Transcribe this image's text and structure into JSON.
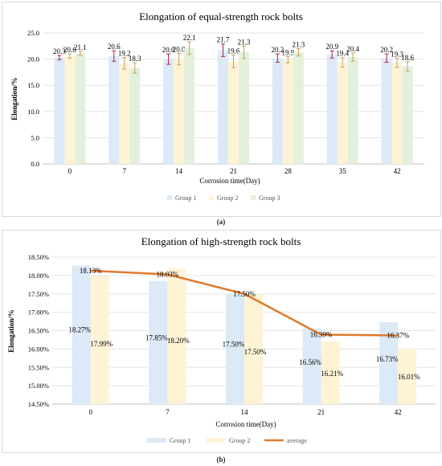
{
  "captions": {
    "a": "(a)",
    "b": "(b)"
  },
  "chart_data": [
    {
      "type": "bar",
      "title": "Elongation of equal-strength rock bolts",
      "xlabel": "Corrosion time(Day)",
      "ylabel": "Elongation/%",
      "categories": [
        "0",
        "7",
        "14",
        "21",
        "28",
        "35",
        "42"
      ],
      "ylim": [
        0,
        25
      ],
      "yticks": [
        "0.0",
        "5.0",
        "10.0",
        "15.0",
        "20.0",
        "25.0"
      ],
      "grid": true,
      "legend_position": "bottom",
      "series": [
        {
          "name": "Group 1",
          "color": "#dce9f7",
          "values": [
            20.3,
            20.6,
            20.0,
            21.7,
            20.2,
            20.9,
            20.2
          ],
          "labels": [
            "20.3",
            "20.6",
            "20.0",
            "21.7",
            "20.2",
            "20.9",
            "20.2"
          ],
          "errors": [
            0.4,
            1.0,
            1.0,
            1.2,
            0.8,
            0.7,
            0.8
          ]
        },
        {
          "name": "Group 2",
          "color": "#fff3d6",
          "values": [
            20.6,
            19.2,
            20.0,
            19.6,
            19.9,
            19.4,
            19.3
          ],
          "labels": [
            "20.6",
            "19.2",
            "20.0",
            "19.6",
            "19.9",
            "19.4",
            "19.3"
          ],
          "errors": [
            0.4,
            1.1,
            1.1,
            1.2,
            0.6,
            0.9,
            0.9
          ]
        },
        {
          "name": "Group 3",
          "color": "#e3f0dc",
          "values": [
            21.1,
            18.3,
            22.1,
            21.3,
            21.3,
            20.4,
            18.6
          ],
          "labels": [
            "21.1",
            "18.3",
            "22.1",
            "21.3",
            "21.3",
            "20.4",
            "18.6"
          ],
          "errors": [
            0.4,
            1.0,
            1.2,
            1.2,
            0.7,
            0.8,
            0.9
          ]
        }
      ]
    },
    {
      "type": "bar",
      "title": "Elongation of high-strength rock bolts",
      "xlabel": "Corrosion time(Day)",
      "ylabel": "Elongation/%",
      "categories": [
        "0",
        "7",
        "14",
        "21",
        "42"
      ],
      "ylim": [
        14.5,
        18.5
      ],
      "yticks": [
        "14.50%",
        "15.00%",
        "15.50%",
        "16.00%",
        "16.50%",
        "17.00%",
        "17.50%",
        "18.00%",
        "18.50%"
      ],
      "grid": true,
      "legend_position": "bottom",
      "series": [
        {
          "name": "Group 1",
          "type": "bar",
          "color": "#dce9f7",
          "values": [
            18.27,
            17.85,
            17.5,
            16.56,
            16.73
          ],
          "labels": [
            "18.27%",
            "17.85%",
            "17.50%",
            "16.56%",
            "16.73%"
          ]
        },
        {
          "name": "Group 2",
          "type": "bar",
          "color": "#fff3d6",
          "values": [
            17.99,
            18.2,
            17.5,
            16.21,
            16.01
          ],
          "labels": [
            "17.99%",
            "18.20%",
            "17.50%",
            "16.21%",
            "16.01%"
          ]
        },
        {
          "name": "average",
          "type": "line",
          "color": "#e07a2e",
          "values": [
            18.13,
            18.03,
            17.5,
            16.39,
            16.37
          ],
          "labels": [
            "18.13%",
            "18.03%",
            "17.50%",
            "16.39%",
            "16.37%"
          ]
        }
      ]
    }
  ]
}
